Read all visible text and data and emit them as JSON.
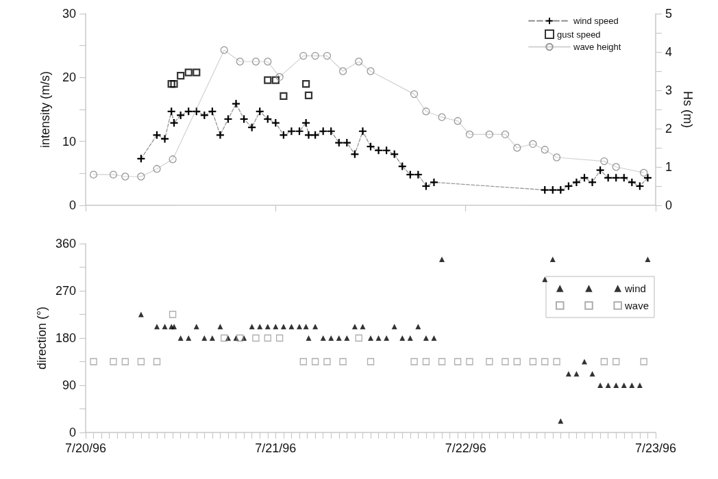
{
  "chart_data": [
    {
      "type": "line",
      "ylabel": "intensity (m/s)",
      "y2label": "Hs (m)",
      "tick_labels": "y",
      "legend": "top right",
      "xlim": [
        "1996-07-20",
        "1996-07-23"
      ],
      "xticks": [
        {
          "value": "1996-07-20",
          "label": null
        },
        {
          "value": "1996-07-21",
          "label": null
        },
        {
          "value": "1996-07-22",
          "label": null
        },
        {
          "value": "1996-07-23",
          "label": null
        }
      ],
      "ylim": [
        0,
        30
      ],
      "yticks": [
        0,
        {
          "value": 5,
          "label": null
        },
        10,
        {
          "value": 15,
          "label": null
        },
        20,
        {
          "value": 25,
          "label": null
        },
        30
      ],
      "y2lim": [
        0,
        5
      ],
      "y2ticks": [
        0,
        {
          "value": 0.5,
          "label": null
        },
        1,
        {
          "value": 1.5,
          "label": null
        },
        2,
        {
          "value": 2.5,
          "label": null
        },
        3,
        {
          "value": 3.5,
          "label": null
        },
        4,
        {
          "value": 4.5,
          "label": null
        },
        5
      ],
      "series": [
        {
          "name": "wind speed",
          "type": "line",
          "marker": "cross",
          "line_style": "dashed",
          "color": "#000000",
          "x": [
            "1996-07-20T07:00",
            "1996-07-20T09:00",
            "1996-07-20T10:00",
            "1996-07-20T10:50",
            "1996-07-20T11:10",
            "1996-07-20T12:00",
            "1996-07-20T13:00",
            "1996-07-20T14:00",
            "1996-07-20T15:00",
            "1996-07-20T16:00",
            "1996-07-20T17:00",
            "1996-07-20T18:00",
            "1996-07-20T19:00",
            "1996-07-20T20:00",
            "1996-07-20T21:00",
            "1996-07-20T22:00",
            "1996-07-20T23:00",
            "1996-07-21T00:00",
            "1996-07-21T01:00",
            "1996-07-21T02:00",
            "1996-07-21T03:00",
            "1996-07-21T03:50",
            "1996-07-21T04:10",
            "1996-07-21T05:00",
            "1996-07-21T06:00",
            "1996-07-21T07:00",
            "1996-07-21T08:00",
            "1996-07-21T09:00",
            "1996-07-21T10:00",
            "1996-07-21T11:00",
            "1996-07-21T12:00",
            "1996-07-21T13:00",
            "1996-07-21T14:00",
            "1996-07-21T15:00",
            "1996-07-21T16:00",
            "1996-07-21T17:00",
            "1996-07-21T18:00",
            "1996-07-21T19:00",
            "1996-07-21T20:00",
            "1996-07-22T10:00",
            "1996-07-22T11:00",
            "1996-07-22T12:00",
            "1996-07-22T13:00",
            "1996-07-22T14:00",
            "1996-07-22T15:00",
            "1996-07-22T16:00",
            "1996-07-22T17:00",
            "1996-07-22T18:00",
            "1996-07-22T19:00",
            "1996-07-22T20:00",
            "1996-07-22T21:00",
            "1996-07-22T22:00",
            "1996-07-22T23:00"
          ],
          "values": [
            7.3,
            11.0,
            10.4,
            14.7,
            12.9,
            14.1,
            14.7,
            14.7,
            14.1,
            14.7,
            11.0,
            13.5,
            15.9,
            13.5,
            12.2,
            14.7,
            13.5,
            12.9,
            11.0,
            11.6,
            11.6,
            12.9,
            11.0,
            11.0,
            11.6,
            11.6,
            9.8,
            9.8,
            8.0,
            11.6,
            9.2,
            8.6,
            8.6,
            8.0,
            6.1,
            4.8,
            4.8,
            3.0,
            3.6,
            2.4,
            2.4,
            2.4,
            3.0,
            3.6,
            4.3,
            3.6,
            5.5,
            4.3,
            4.3,
            4.3,
            3.6,
            3.0,
            4.3
          ]
        },
        {
          "name": "gust speed",
          "type": "scatter",
          "marker": "square",
          "color": "#000000",
          "x": [
            "1996-07-20T10:50",
            "1996-07-20T11:10",
            "1996-07-20T12:00",
            "1996-07-20T13:00",
            "1996-07-20T14:00",
            "1996-07-20T23:00",
            "1996-07-21T00:00",
            "1996-07-21T01:00",
            "1996-07-21T03:50",
            "1996-07-21T04:10"
          ],
          "values": [
            19.0,
            19.0,
            20.3,
            20.8,
            20.8,
            19.6,
            19.6,
            17.1,
            19.0,
            17.2
          ]
        },
        {
          "name": "wave height",
          "type": "line",
          "marker": "circle",
          "line_style": "solid",
          "color": "#999999",
          "axis": "y2",
          "x": [
            "1996-07-20T01:00",
            "1996-07-20T03:30",
            "1996-07-20T05:00",
            "1996-07-20T07:00",
            "1996-07-20T09:00",
            "1996-07-20T11:00",
            "1996-07-20T17:30",
            "1996-07-20T19:30",
            "1996-07-20T21:30",
            "1996-07-20T23:00",
            "1996-07-21T00:30",
            "1996-07-21T03:30",
            "1996-07-21T05:00",
            "1996-07-21T06:30",
            "1996-07-21T08:30",
            "1996-07-21T10:30",
            "1996-07-21T12:00",
            "1996-07-21T17:30",
            "1996-07-21T19:00",
            "1996-07-21T21:00",
            "1996-07-21T23:00",
            "1996-07-22T00:30",
            "1996-07-22T03:00",
            "1996-07-22T05:00",
            "1996-07-22T06:30",
            "1996-07-22T08:30",
            "1996-07-22T10:00",
            "1996-07-22T11:30",
            "1996-07-22T17:30",
            "1996-07-22T19:00",
            "1996-07-22T22:30"
          ],
          "values": [
            0.8,
            0.8,
            0.75,
            0.75,
            0.95,
            1.2,
            4.05,
            3.75,
            3.75,
            3.75,
            3.35,
            3.9,
            3.9,
            3.9,
            3.5,
            3.75,
            3.5,
            2.9,
            2.45,
            2.3,
            2.2,
            1.85,
            1.85,
            1.85,
            1.5,
            1.6,
            1.45,
            1.25,
            1.15,
            1.0,
            0.85
          ]
        }
      ]
    },
    {
      "type": "scatter",
      "ylabel": "direction (°)",
      "legend": "right",
      "xlim": [
        "1996-07-20",
        "1996-07-23"
      ],
      "xticks": [
        {
          "value": "1996-07-20",
          "label": "7/20/96"
        },
        {
          "value": "1996-07-20T01:00",
          "label": null
        },
        {
          "value": "1996-07-20T02:00",
          "label": null
        },
        {
          "value": "1996-07-20T03:00",
          "label": null
        },
        {
          "value": "1996-07-20T04:00",
          "label": null
        },
        {
          "value": "1996-07-20T05:00",
          "label": null
        },
        {
          "value": "1996-07-20T06:00",
          "label": null
        },
        {
          "value": "1996-07-20T07:00",
          "label": null
        },
        {
          "value": "1996-07-20T08:00",
          "label": null
        },
        {
          "value": "1996-07-20T09:00",
          "label": null
        },
        {
          "value": "1996-07-20T10:00",
          "label": null
        },
        {
          "value": "1996-07-20T11:00",
          "label": null
        },
        {
          "value": "1996-07-20T12:00",
          "label": null
        },
        {
          "value": "1996-07-20T13:00",
          "label": null
        },
        {
          "value": "1996-07-20T14:00",
          "label": null
        },
        {
          "value": "1996-07-20T15:00",
          "label": null
        },
        {
          "value": "1996-07-20T16:00",
          "label": null
        },
        {
          "value": "1996-07-20T17:00",
          "label": null
        },
        {
          "value": "1996-07-20T18:00",
          "label": null
        },
        {
          "value": "1996-07-20T19:00",
          "label": null
        },
        {
          "value": "1996-07-20T20:00",
          "label": null
        },
        {
          "value": "1996-07-20T21:00",
          "label": null
        },
        {
          "value": "1996-07-20T22:00",
          "label": null
        },
        {
          "value": "1996-07-20T23:00",
          "label": null
        },
        {
          "value": "1996-07-21",
          "label": "7/21/96"
        },
        {
          "value": "1996-07-21T01:00",
          "label": null
        },
        {
          "value": "1996-07-21T02:00",
          "label": null
        },
        {
          "value": "1996-07-21T03:00",
          "label": null
        },
        {
          "value": "1996-07-21T04:00",
          "label": null
        },
        {
          "value": "1996-07-21T05:00",
          "label": null
        },
        {
          "value": "1996-07-21T06:00",
          "label": null
        },
        {
          "value": "1996-07-21T07:00",
          "label": null
        },
        {
          "value": "1996-07-21T08:00",
          "label": null
        },
        {
          "value": "1996-07-21T09:00",
          "label": null
        },
        {
          "value": "1996-07-21T10:00",
          "label": null
        },
        {
          "value": "1996-07-21T11:00",
          "label": null
        },
        {
          "value": "1996-07-21T12:00",
          "label": null
        },
        {
          "value": "1996-07-21T13:00",
          "label": null
        },
        {
          "value": "1996-07-21T14:00",
          "label": null
        },
        {
          "value": "1996-07-21T15:00",
          "label": null
        },
        {
          "value": "1996-07-21T16:00",
          "label": null
        },
        {
          "value": "1996-07-21T17:00",
          "label": null
        },
        {
          "value": "1996-07-21T18:00",
          "label": null
        },
        {
          "value": "1996-07-21T19:00",
          "label": null
        },
        {
          "value": "1996-07-21T20:00",
          "label": null
        },
        {
          "value": "1996-07-21T21:00",
          "label": null
        },
        {
          "value": "1996-07-21T22:00",
          "label": null
        },
        {
          "value": "1996-07-21T23:00",
          "label": null
        },
        {
          "value": "1996-07-22",
          "label": "7/22/96"
        },
        {
          "value": "1996-07-22T01:00",
          "label": null
        },
        {
          "value": "1996-07-22T02:00",
          "label": null
        },
        {
          "value": "1996-07-22T03:00",
          "label": null
        },
        {
          "value": "1996-07-22T04:00",
          "label": null
        },
        {
          "value": "1996-07-22T05:00",
          "label": null
        },
        {
          "value": "1996-07-22T06:00",
          "label": null
        },
        {
          "value": "1996-07-22T07:00",
          "label": null
        },
        {
          "value": "1996-07-22T08:00",
          "label": null
        },
        {
          "value": "1996-07-22T09:00",
          "label": null
        },
        {
          "value": "1996-07-22T10:00",
          "label": null
        },
        {
          "value": "1996-07-22T11:00",
          "label": null
        },
        {
          "value": "1996-07-22T12:00",
          "label": null
        },
        {
          "value": "1996-07-22T13:00",
          "label": null
        },
        {
          "value": "1996-07-22T14:00",
          "label": null
        },
        {
          "value": "1996-07-22T15:00",
          "label": null
        },
        {
          "value": "1996-07-22T16:00",
          "label": null
        },
        {
          "value": "1996-07-22T17:00",
          "label": null
        },
        {
          "value": "1996-07-22T18:00",
          "label": null
        },
        {
          "value": "1996-07-22T19:00",
          "label": null
        },
        {
          "value": "1996-07-22T20:00",
          "label": null
        },
        {
          "value": "1996-07-22T21:00",
          "label": null
        },
        {
          "value": "1996-07-22T22:00",
          "label": null
        },
        {
          "value": "1996-07-22T23:00",
          "label": null
        },
        {
          "value": "1996-07-23",
          "label": "7/23/96"
        }
      ],
      "ylim": [
        0,
        360
      ],
      "yticks": [
        0,
        {
          "value": 45,
          "label": null
        },
        90,
        {
          "value": 135,
          "label": null
        },
        180,
        {
          "value": 225,
          "label": null
        },
        270,
        {
          "value": 315,
          "label": null
        },
        360
      ],
      "series": [
        {
          "name": "wind",
          "marker": "triangle",
          "color": "#000000",
          "x": [
            "1996-07-20T07:00",
            "1996-07-20T09:00",
            "1996-07-20T10:00",
            "1996-07-20T10:50",
            "1996-07-20T11:10",
            "1996-07-20T12:00",
            "1996-07-20T13:00",
            "1996-07-20T14:00",
            "1996-07-20T15:00",
            "1996-07-20T16:00",
            "1996-07-20T17:00",
            "1996-07-20T18:00",
            "1996-07-20T19:00",
            "1996-07-20T20:00",
            "1996-07-20T21:00",
            "1996-07-20T22:00",
            "1996-07-20T23:00",
            "1996-07-21T00:00",
            "1996-07-21T01:00",
            "1996-07-21T02:00",
            "1996-07-21T03:00",
            "1996-07-21T03:50",
            "1996-07-21T04:10",
            "1996-07-21T05:00",
            "1996-07-21T06:00",
            "1996-07-21T07:00",
            "1996-07-21T08:00",
            "1996-07-21T09:00",
            "1996-07-21T10:00",
            "1996-07-21T11:00",
            "1996-07-21T12:00",
            "1996-07-21T13:00",
            "1996-07-21T14:00",
            "1996-07-21T15:00",
            "1996-07-21T16:00",
            "1996-07-21T17:00",
            "1996-07-21T18:00",
            "1996-07-21T19:00",
            "1996-07-21T20:00",
            "1996-07-21T21:00",
            "1996-07-22T10:00",
            "1996-07-22T11:00",
            "1996-07-22T12:00",
            "1996-07-22T13:00",
            "1996-07-22T14:00",
            "1996-07-22T15:00",
            "1996-07-22T16:00",
            "1996-07-22T17:00",
            "1996-07-22T18:00",
            "1996-07-22T19:00",
            "1996-07-22T20:00",
            "1996-07-22T21:00",
            "1996-07-22T22:00",
            "1996-07-22T23:00"
          ],
          "values": [
            225,
            202,
            202,
            202,
            202,
            180,
            180,
            202,
            180,
            180,
            202,
            180,
            180,
            180,
            202,
            202,
            202,
            202,
            202,
            202,
            202,
            202,
            180,
            202,
            180,
            180,
            180,
            180,
            202,
            202,
            180,
            180,
            180,
            202,
            180,
            180,
            202,
            180,
            180,
            330,
            292,
            330,
            22,
            112,
            112,
            135,
            112,
            90,
            90,
            90,
            90,
            90,
            90,
            330
          ]
        },
        {
          "name": "wave",
          "marker": "square",
          "color": "#999999",
          "x": [
            "1996-07-20T01:00",
            "1996-07-20T03:30",
            "1996-07-20T05:00",
            "1996-07-20T07:00",
            "1996-07-20T09:00",
            "1996-07-20T11:00",
            "1996-07-20T17:30",
            "1996-07-20T19:30",
            "1996-07-20T21:30",
            "1996-07-20T23:00",
            "1996-07-21T00:30",
            "1996-07-21T03:30",
            "1996-07-21T05:00",
            "1996-07-21T06:30",
            "1996-07-21T08:30",
            "1996-07-21T10:30",
            "1996-07-21T12:00",
            "1996-07-21T17:30",
            "1996-07-21T19:00",
            "1996-07-21T21:00",
            "1996-07-21T23:00",
            "1996-07-22T00:30",
            "1996-07-22T03:00",
            "1996-07-22T05:00",
            "1996-07-22T06:30",
            "1996-07-22T08:30",
            "1996-07-22T10:00",
            "1996-07-22T11:30",
            "1996-07-22T17:30",
            "1996-07-22T19:00",
            "1996-07-22T22:30"
          ],
          "values": [
            135,
            135,
            135,
            135,
            135,
            225,
            180,
            180,
            180,
            180,
            180,
            135,
            135,
            135,
            135,
            180,
            135,
            135,
            135,
            135,
            135,
            135,
            135,
            135,
            135,
            135,
            135,
            135,
            135,
            135,
            135
          ]
        }
      ]
    }
  ]
}
